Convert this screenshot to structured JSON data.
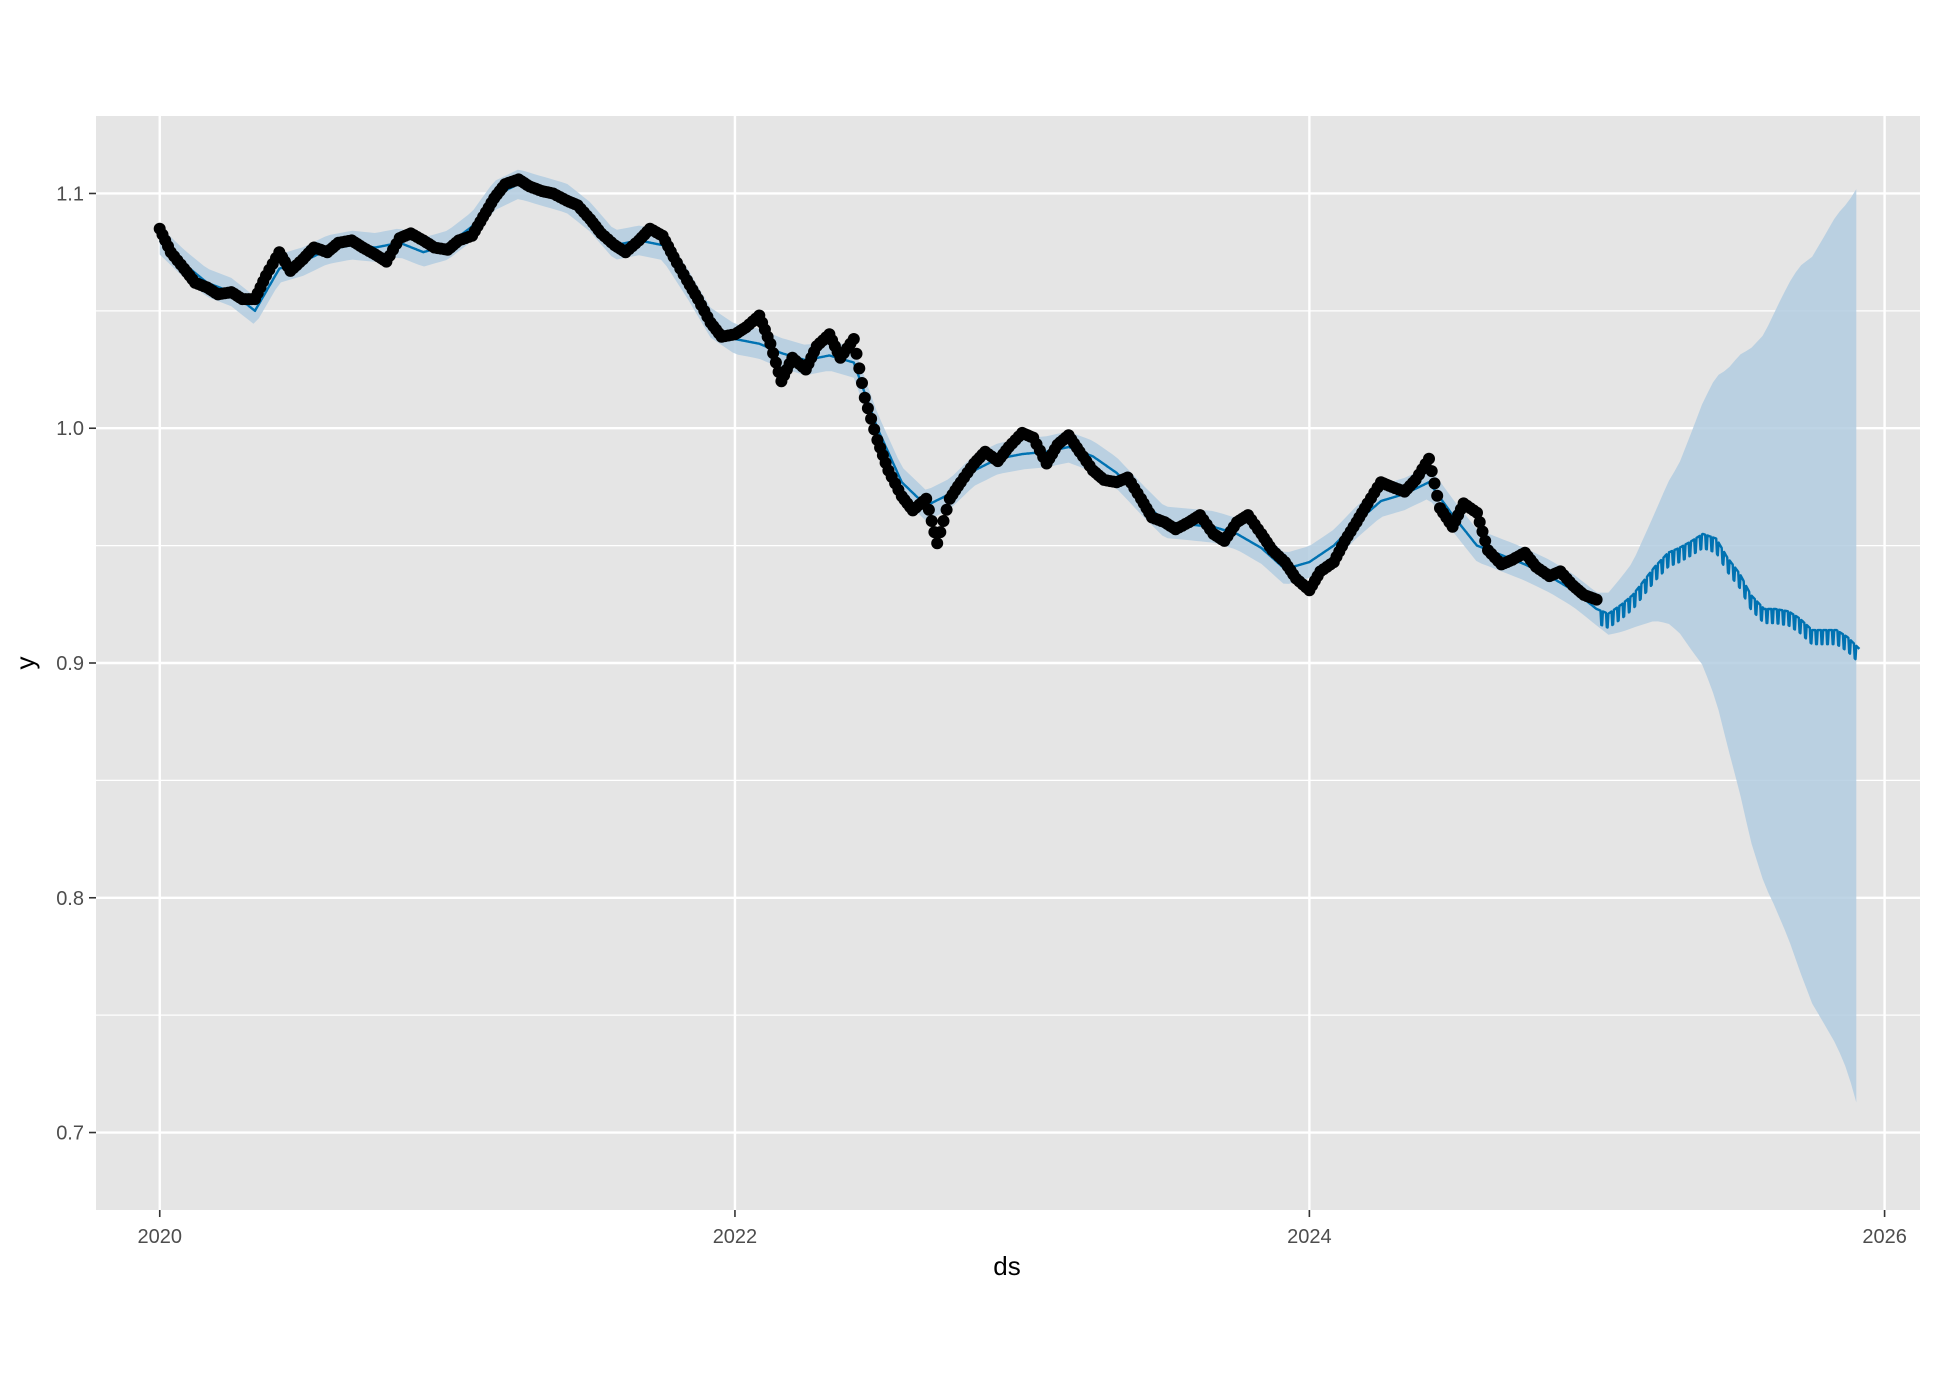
{
  "chart_data": {
    "type": "line",
    "xlabel": "ds",
    "ylabel": "y",
    "xlim": [
      "2019-10-12",
      "2026-02-15"
    ],
    "ylim": [
      0.667,
      1.133
    ],
    "x_ticks": [
      "2020",
      "2022",
      "2024",
      "2026"
    ],
    "y_ticks": [
      "0.7",
      "0.8",
      "0.9",
      "1.0",
      "1.1"
    ],
    "grid": true,
    "legend": "none",
    "colors": {
      "panel_background": "#e5e5e5",
      "grid": "#ffffff",
      "points": "#000000",
      "forecast_line": "#0072b2",
      "uncertainty_band": "#b3cde0"
    },
    "history_end": "2024-12-31",
    "forecast_end": "2025-11-30",
    "observed_points": [
      [
        "2020-01-01",
        1.085
      ],
      [
        "2020-01-15",
        1.075
      ],
      [
        "2020-02-01",
        1.068
      ],
      [
        "2020-02-15",
        1.062
      ],
      [
        "2020-03-01",
        1.06
      ],
      [
        "2020-03-15",
        1.057
      ],
      [
        "2020-04-01",
        1.058
      ],
      [
        "2020-04-15",
        1.055
      ],
      [
        "2020-05-01",
        1.055
      ],
      [
        "2020-05-15",
        1.065
      ],
      [
        "2020-06-01",
        1.075
      ],
      [
        "2020-06-15",
        1.067
      ],
      [
        "2020-07-01",
        1.072
      ],
      [
        "2020-07-15",
        1.077
      ],
      [
        "2020-08-01",
        1.075
      ],
      [
        "2020-08-15",
        1.079
      ],
      [
        "2020-09-01",
        1.08
      ],
      [
        "2020-09-15",
        1.077
      ],
      [
        "2020-10-01",
        1.074
      ],
      [
        "2020-10-15",
        1.071
      ],
      [
        "2020-11-01",
        1.081
      ],
      [
        "2020-11-15",
        1.083
      ],
      [
        "2020-12-01",
        1.08
      ],
      [
        "2020-12-15",
        1.077
      ],
      [
        "2021-01-01",
        1.076
      ],
      [
        "2021-01-15",
        1.08
      ],
      [
        "2021-02-01",
        1.082
      ],
      [
        "2021-02-15",
        1.09
      ],
      [
        "2021-03-01",
        1.098
      ],
      [
        "2021-03-15",
        1.104
      ],
      [
        "2021-04-01",
        1.106
      ],
      [
        "2021-04-15",
        1.103
      ],
      [
        "2021-05-01",
        1.101
      ],
      [
        "2021-05-15",
        1.1
      ],
      [
        "2021-06-01",
        1.097
      ],
      [
        "2021-06-15",
        1.095
      ],
      [
        "2021-07-01",
        1.089
      ],
      [
        "2021-07-15",
        1.083
      ],
      [
        "2021-08-01",
        1.078
      ],
      [
        "2021-08-15",
        1.075
      ],
      [
        "2021-09-01",
        1.08
      ],
      [
        "2021-09-15",
        1.085
      ],
      [
        "2021-10-01",
        1.082
      ],
      [
        "2021-10-15",
        1.073
      ],
      [
        "2021-11-01",
        1.063
      ],
      [
        "2021-11-15",
        1.055
      ],
      [
        "2021-12-01",
        1.045
      ],
      [
        "2021-12-15",
        1.039
      ],
      [
        "2022-01-01",
        1.04
      ],
      [
        "2022-01-15",
        1.043
      ],
      [
        "2022-02-01",
        1.048
      ],
      [
        "2022-02-15",
        1.036
      ],
      [
        "2022-03-01",
        1.02
      ],
      [
        "2022-03-15",
        1.03
      ],
      [
        "2022-04-01",
        1.025
      ],
      [
        "2022-04-15",
        1.035
      ],
      [
        "2022-05-01",
        1.04
      ],
      [
        "2022-05-15",
        1.03
      ],
      [
        "2022-06-01",
        1.038
      ],
      [
        "2022-06-15",
        1.013
      ],
      [
        "2022-07-01",
        0.995
      ],
      [
        "2022-07-15",
        0.982
      ],
      [
        "2022-08-01",
        0.971
      ],
      [
        "2022-08-15",
        0.965
      ],
      [
        "2022-09-01",
        0.97
      ],
      [
        "2022-09-15",
        0.951
      ],
      [
        "2022-10-01",
        0.97
      ],
      [
        "2022-10-15",
        0.977
      ],
      [
        "2022-11-01",
        0.985
      ],
      [
        "2022-11-15",
        0.99
      ],
      [
        "2022-12-01",
        0.986
      ],
      [
        "2022-12-15",
        0.992
      ],
      [
        "2023-01-01",
        0.998
      ],
      [
        "2023-01-15",
        0.996
      ],
      [
        "2023-02-01",
        0.985
      ],
      [
        "2023-02-15",
        0.993
      ],
      [
        "2023-03-01",
        0.997
      ],
      [
        "2023-03-15",
        0.99
      ],
      [
        "2023-04-01",
        0.982
      ],
      [
        "2023-04-15",
        0.978
      ],
      [
        "2023-05-01",
        0.977
      ],
      [
        "2023-05-15",
        0.979
      ],
      [
        "2023-06-01",
        0.97
      ],
      [
        "2023-06-15",
        0.962
      ],
      [
        "2023-07-01",
        0.96
      ],
      [
        "2023-07-15",
        0.957
      ],
      [
        "2023-08-01",
        0.96
      ],
      [
        "2023-08-15",
        0.963
      ],
      [
        "2023-09-01",
        0.955
      ],
      [
        "2023-09-15",
        0.952
      ],
      [
        "2023-10-01",
        0.96
      ],
      [
        "2023-10-15",
        0.963
      ],
      [
        "2023-11-01",
        0.955
      ],
      [
        "2023-11-15",
        0.948
      ],
      [
        "2023-12-01",
        0.943
      ],
      [
        "2023-12-15",
        0.936
      ],
      [
        "2024-01-01",
        0.931
      ],
      [
        "2024-01-15",
        0.939
      ],
      [
        "2024-02-01",
        0.943
      ],
      [
        "2024-02-15",
        0.952
      ],
      [
        "2024-03-01",
        0.96
      ],
      [
        "2024-03-15",
        0.968
      ],
      [
        "2024-04-01",
        0.977
      ],
      [
        "2024-04-15",
        0.975
      ],
      [
        "2024-05-01",
        0.973
      ],
      [
        "2024-05-15",
        0.978
      ],
      [
        "2024-06-01",
        0.987
      ],
      [
        "2024-06-15",
        0.966
      ],
      [
        "2024-07-01",
        0.958
      ],
      [
        "2024-07-15",
        0.968
      ],
      [
        "2024-08-01",
        0.964
      ],
      [
        "2024-08-15",
        0.948
      ],
      [
        "2024-09-01",
        0.942
      ],
      [
        "2024-09-15",
        0.944
      ],
      [
        "2024-10-01",
        0.947
      ],
      [
        "2024-10-15",
        0.941
      ],
      [
        "2024-11-01",
        0.937
      ],
      [
        "2024-11-15",
        0.939
      ],
      [
        "2024-12-01",
        0.933
      ],
      [
        "2024-12-15",
        0.929
      ],
      [
        "2024-12-31",
        0.927
      ]
    ],
    "forecast": [
      [
        "2020-01-01",
        1.08
      ],
      [
        "2020-02-01",
        1.07
      ],
      [
        "2020-03-01",
        1.062
      ],
      [
        "2020-04-01",
        1.058
      ],
      [
        "2020-05-01",
        1.05
      ],
      [
        "2020-06-01",
        1.068
      ],
      [
        "2020-07-01",
        1.071
      ],
      [
        "2020-08-01",
        1.076
      ],
      [
        "2020-09-01",
        1.078
      ],
      [
        "2020-10-01",
        1.077
      ],
      [
        "2020-11-01",
        1.079
      ],
      [
        "2020-12-01",
        1.075
      ],
      [
        "2021-01-01",
        1.078
      ],
      [
        "2021-02-01",
        1.086
      ],
      [
        "2021-03-01",
        1.099
      ],
      [
        "2021-04-01",
        1.104
      ],
      [
        "2021-05-01",
        1.101
      ],
      [
        "2021-06-01",
        1.098
      ],
      [
        "2021-07-01",
        1.09
      ],
      [
        "2021-08-01",
        1.078
      ],
      [
        "2021-09-01",
        1.08
      ],
      [
        "2021-10-01",
        1.078
      ],
      [
        "2021-11-01",
        1.062
      ],
      [
        "2021-12-01",
        1.045
      ],
      [
        "2022-01-01",
        1.038
      ],
      [
        "2022-02-01",
        1.036
      ],
      [
        "2022-03-01",
        1.032
      ],
      [
        "2022-04-01",
        1.029
      ],
      [
        "2022-05-01",
        1.031
      ],
      [
        "2022-06-01",
        1.028
      ],
      [
        "2022-07-01",
        1.0
      ],
      [
        "2022-08-01",
        0.977
      ],
      [
        "2022-09-01",
        0.967
      ],
      [
        "2022-10-01",
        0.972
      ],
      [
        "2022-11-01",
        0.982
      ],
      [
        "2022-12-01",
        0.987
      ],
      [
        "2023-01-01",
        0.989
      ],
      [
        "2023-02-01",
        0.99
      ],
      [
        "2023-03-01",
        0.992
      ],
      [
        "2023-04-01",
        0.988
      ],
      [
        "2023-05-01",
        0.981
      ],
      [
        "2023-06-01",
        0.97
      ],
      [
        "2023-07-01",
        0.96
      ],
      [
        "2023-08-01",
        0.959
      ],
      [
        "2023-09-01",
        0.958
      ],
      [
        "2023-10-01",
        0.955
      ],
      [
        "2023-11-01",
        0.949
      ],
      [
        "2023-12-01",
        0.94
      ],
      [
        "2024-01-01",
        0.943
      ],
      [
        "2024-02-01",
        0.95
      ],
      [
        "2024-03-01",
        0.96
      ],
      [
        "2024-04-01",
        0.969
      ],
      [
        "2024-05-01",
        0.972
      ],
      [
        "2024-06-01",
        0.977
      ],
      [
        "2024-07-01",
        0.963
      ],
      [
        "2024-08-01",
        0.95
      ],
      [
        "2024-09-01",
        0.946
      ],
      [
        "2024-10-01",
        0.942
      ],
      [
        "2024-11-01",
        0.937
      ],
      [
        "2024-12-01",
        0.931
      ],
      [
        "2024-12-31",
        0.923
      ],
      [
        "2025-01-15",
        0.921
      ],
      [
        "2025-02-01",
        0.925
      ],
      [
        "2025-02-15",
        0.929
      ],
      [
        "2025-03-01",
        0.935
      ],
      [
        "2025-03-15",
        0.941
      ],
      [
        "2025-04-01",
        0.947
      ],
      [
        "2025-04-15",
        0.949
      ],
      [
        "2025-05-01",
        0.952
      ],
      [
        "2025-05-15",
        0.955
      ],
      [
        "2025-06-01",
        0.953
      ],
      [
        "2025-06-15",
        0.945
      ],
      [
        "2025-07-01",
        0.938
      ],
      [
        "2025-07-15",
        0.929
      ],
      [
        "2025-08-01",
        0.923
      ],
      [
        "2025-08-15",
        0.923
      ],
      [
        "2025-09-01",
        0.922
      ],
      [
        "2025-09-15",
        0.919
      ],
      [
        "2025-10-01",
        0.914
      ],
      [
        "2025-10-15",
        0.914
      ],
      [
        "2025-11-01",
        0.914
      ],
      [
        "2025-11-15",
        0.911
      ],
      [
        "2025-11-30",
        0.906
      ]
    ],
    "band_half_width": [
      [
        "2020-01-01",
        0.006
      ],
      [
        "2024-12-31",
        0.007
      ],
      [
        "2025-01-15",
        0.009
      ],
      [
        "2025-02-15",
        0.014
      ],
      [
        "2025-03-15",
        0.023
      ],
      [
        "2025-04-15",
        0.036
      ],
      [
        "2025-05-15",
        0.056
      ],
      [
        "2025-06-15",
        0.08
      ],
      [
        "2025-07-15",
        0.105
      ],
      [
        "2025-08-15",
        0.127
      ],
      [
        "2025-09-15",
        0.15
      ],
      [
        "2025-10-15",
        0.167
      ],
      [
        "2025-11-15",
        0.185
      ],
      [
        "2025-11-30",
        0.198
      ]
    ]
  }
}
